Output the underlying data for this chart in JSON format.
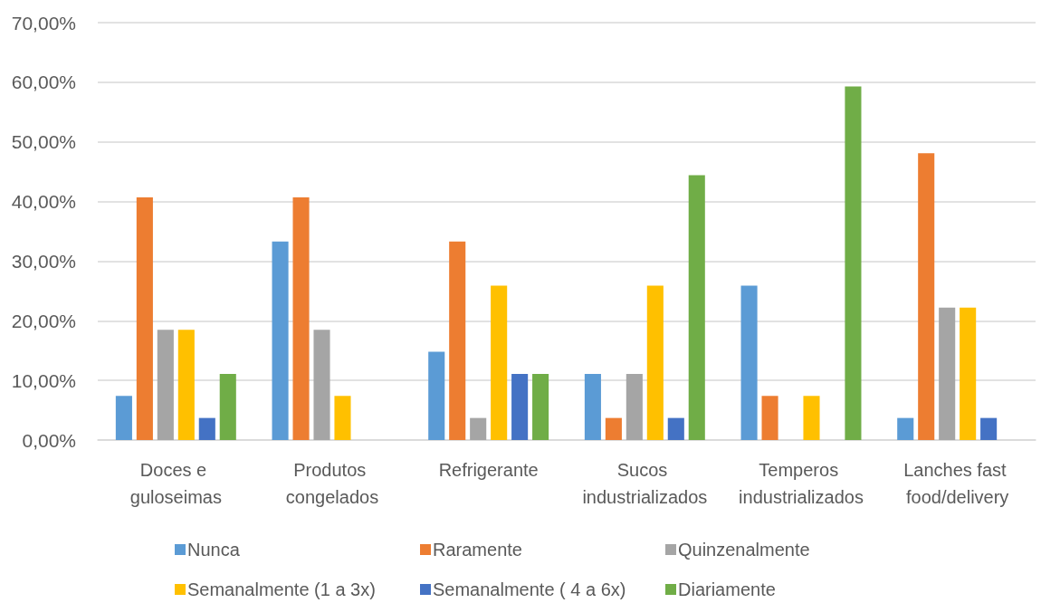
{
  "chart_data": {
    "type": "bar",
    "categories": [
      "Doces e guloseimas",
      "Produtos congelados",
      "Refrigerante",
      "Sucos industrializados",
      "Temperos industrializados",
      "Lanches fast food/delivery"
    ],
    "series": [
      {
        "name": "Nunca",
        "color": "#5b9bd5",
        "values": [
          7.4,
          33.3,
          14.8,
          11.1,
          25.9,
          3.7
        ]
      },
      {
        "name": "Raramente",
        "color": "#ed7d31",
        "values": [
          40.7,
          40.7,
          33.3,
          3.7,
          7.4,
          48.1
        ]
      },
      {
        "name": "Quinzenalmente",
        "color": "#a5a5a5",
        "values": [
          18.5,
          18.5,
          3.7,
          11.1,
          0,
          22.2
        ]
      },
      {
        "name": "Semanalmente (1 a 3x)",
        "color": "#ffc000",
        "values": [
          18.5,
          7.4,
          25.9,
          25.9,
          7.4,
          22.2
        ]
      },
      {
        "name": "Semanalmente ( 4 a 6x)",
        "color": "#4472c4",
        "values": [
          3.7,
          0,
          11.1,
          3.7,
          0,
          3.7
        ]
      },
      {
        "name": "Diariamente",
        "color": "#70ad47",
        "values": [
          11.1,
          0,
          11.1,
          44.4,
          59.3,
          0
        ]
      }
    ],
    "ylim": [
      0,
      70
    ],
    "yticks": [
      {
        "value": 0,
        "label": "0,00%"
      },
      {
        "value": 10,
        "label": "10,00%"
      },
      {
        "value": 20,
        "label": "20,00%"
      },
      {
        "value": 30,
        "label": "30,00%"
      },
      {
        "value": 40,
        "label": "40,00%"
      },
      {
        "value": 50,
        "label": "50,00%"
      },
      {
        "value": 60,
        "label": "60,00%"
      },
      {
        "value": 70,
        "label": "70,00%"
      }
    ],
    "grid": "y",
    "legend": "bottom"
  }
}
